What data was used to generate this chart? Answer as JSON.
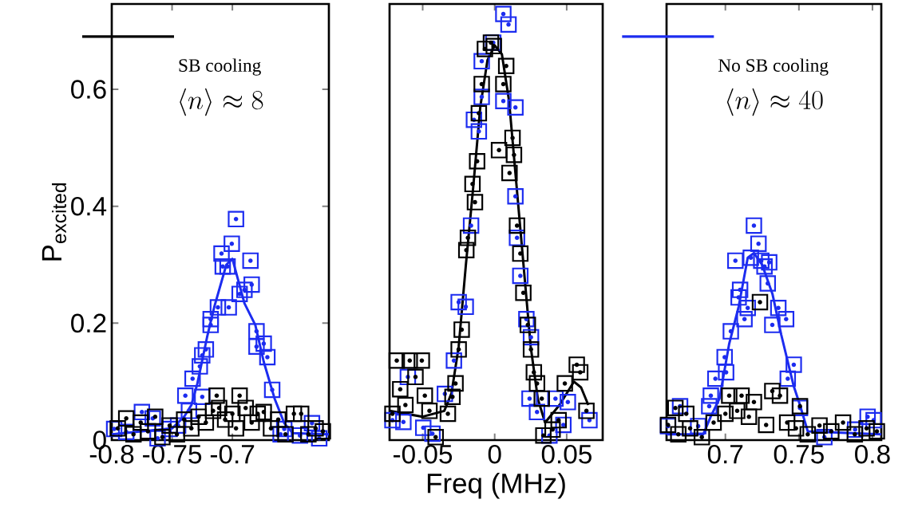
{
  "chart_data": [
    {
      "type": "scatter",
      "ylabel": "P$_{excited}$",
      "xlim": [
        -0.8,
        -0.62
      ],
      "ylim": [
        0,
        0.746
      ],
      "xticks": [
        -0.8,
        -0.75,
        -0.7
      ],
      "yticks": [
        0,
        0.2,
        0.4,
        0.6
      ],
      "marker": "square",
      "legend": "top",
      "annotations": [
        "\\langle n\\rangle \\approx 8"
      ],
      "series": [
        {
          "color": "#1c2cf0",
          "x": [
            -0.697,
            -0.7005,
            -0.709,
            -0.704,
            -0.708,
            -0.685,
            -0.684,
            -0.69,
            -0.694,
            -0.703,
            -0.712,
            -0.718,
            -0.718,
            -0.68,
            -0.68,
            -0.674,
            -0.671,
            -0.722,
            -0.725,
            -0.727,
            -0.733,
            -0.667,
            -0.725,
            -0.739,
            -0.736,
            -0.775,
            -0.766,
            -0.798,
            -0.788,
            -0.762,
            -0.657,
            -0.634,
            -0.628,
            -0.644,
            -0.752,
            -0.745,
            -0.66
          ],
          "values": [
            0.378,
            0.336,
            0.319,
            0.297,
            0.297,
            0.307,
            0.266,
            0.257,
            0.25,
            0.227,
            0.227,
            0.207,
            0.197,
            0.186,
            0.16,
            0.165,
            0.142,
            0.155,
            0.145,
            0.126,
            0.105,
            0.086,
            0.074,
            0.076,
            0.05,
            0.048,
            0.037,
            0.019,
            0.014,
            0.003,
            0.019,
            0.029,
            0.003,
            0.008,
            0.019,
            0.025,
            0.01
          ]
        },
        {
          "name": "SB cooling",
          "color": "#000000",
          "x": [
            -0.795,
            -0.788,
            -0.782,
            -0.776,
            -0.77,
            -0.764,
            -0.758,
            -0.752,
            -0.746,
            -0.74,
            -0.734,
            -0.728,
            -0.722,
            -0.716,
            -0.713,
            -0.711,
            -0.706,
            -0.7,
            -0.697,
            -0.694,
            -0.689,
            -0.684,
            -0.679,
            -0.674,
            -0.668,
            -0.662,
            -0.656,
            -0.649,
            -0.643,
            -0.637,
            -0.631,
            -0.625
          ],
          "values": [
            0.02,
            0.037,
            0.01,
            0.03,
            0.015,
            0.04,
            0.005,
            0.025,
            0.01,
            0.035,
            0.02,
            0.04,
            0.03,
            0.05,
            0.076,
            0.055,
            0.035,
            0.045,
            0.02,
            0.076,
            0.055,
            0.03,
            0.045,
            0.048,
            0.02,
            0.035,
            0.01,
            0.045,
            0.045,
            0.01,
            0.02,
            0.015
          ]
        },
        {
          "type": "line",
          "marker": "none",
          "color": "#1c2cf0",
          "x": [
            -0.8,
            -0.75,
            -0.74,
            -0.734,
            -0.729,
            -0.721,
            -0.715,
            -0.705,
            -0.7,
            -0.69,
            -0.681,
            -0.674,
            -0.665,
            -0.657,
            -0.65,
            -0.62
          ],
          "values": [
            0.01,
            0.02,
            0.04,
            0.06,
            0.097,
            0.176,
            0.228,
            0.3,
            0.31,
            0.234,
            0.197,
            0.134,
            0.071,
            0.029,
            0.012,
            0.01
          ]
        }
      ]
    },
    {
      "type": "scatter",
      "xlabel": "Freq (MHz)",
      "xlim": [
        -0.073,
        0.075
      ],
      "ylim": [
        0,
        0.746
      ],
      "xticks": [
        -0.05,
        0,
        0.05
      ],
      "tick_labels": "x",
      "marker": "square",
      "series": [
        {
          "color": "#1c2cf0",
          "x": [
            0.006,
            0.0096,
            -0.001,
            -0.009,
            -0.009,
            0.006,
            0.0144,
            -0.0144,
            -0.011,
            -0.0164,
            0.0155,
            0.0178,
            0.0144,
            -0.025,
            -0.0201,
            -0.0283,
            0.022,
            0.0252,
            0.0242,
            -0.0346,
            -0.0603,
            -0.071,
            -0.0634,
            -0.0496,
            -0.0432,
            0.0294,
            0.038,
            0.0477,
            0.0658,
            0.0508,
            0.0422
          ],
          "values": [
            0.729,
            0.711,
            0.68,
            0.648,
            0.587,
            0.58,
            0.569,
            0.548,
            0.528,
            0.367,
            0.346,
            0.281,
            0.417,
            0.236,
            0.228,
            0.136,
            0.207,
            0.176,
            0.071,
            0.079,
            0.108,
            0.034,
            0.031,
            0.021,
            0.011,
            0.048,
            0.008,
            0.026,
            0.034,
            0.065,
            0.071
          ]
        },
        {
          "color": "#000000",
          "x": [
            -0.0026,
            -0.0068,
            -0.0006,
            0.008,
            -0.009,
            0.006,
            -0.011,
            0.003,
            0.0124,
            0.0134,
            0.0103,
            -0.0122,
            -0.0154,
            -0.0137,
            0.0155,
            -0.0186,
            -0.0197,
            0.0178,
            0.0199,
            -0.0229,
            -0.025,
            0.023,
            0.0252,
            -0.0272,
            -0.0293,
            0.0272,
            0.0294,
            0.0327,
            -0.068,
            -0.059,
            -0.0506,
            -0.055,
            -0.0656,
            -0.0485,
            -0.071,
            -0.062,
            -0.0453,
            -0.0325,
            -0.041,
            0.057,
            0.0594,
            0.0487,
            0.0637,
            0.0338,
            0.0402,
            0.0444
          ],
          "values": [
            0.68,
            0.669,
            0.674,
            0.64,
            0.609,
            0.609,
            0.559,
            0.496,
            0.517,
            0.488,
            0.457,
            0.477,
            0.438,
            0.407,
            0.367,
            0.346,
            0.325,
            0.319,
            0.252,
            0.189,
            0.155,
            0.197,
            0.155,
            0.097,
            0.074,
            0.116,
            0.097,
            0.071,
            0.136,
            0.136,
            0.136,
            0.108,
            0.087,
            0.076,
            0.045,
            0.06,
            0.05,
            0.045,
            0.005,
            0.129,
            0.116,
            0.097,
            0.05,
            0.008,
            0.018,
            0.034
          ]
        },
        {
          "type": "line",
          "marker": "none",
          "color": "#000000",
          "x": [
            -0.073,
            -0.05,
            -0.035,
            -0.03,
            -0.025,
            -0.02,
            -0.015,
            -0.01,
            -0.005,
            0,
            0.005,
            0.01,
            0.015,
            0.02,
            0.025,
            0.03,
            0.035,
            0.045,
            0.055,
            0.06,
            0.065
          ],
          "values": [
            0.05,
            0.04,
            0.05,
            0.08,
            0.16,
            0.3,
            0.43,
            0.57,
            0.65,
            0.675,
            0.66,
            0.58,
            0.44,
            0.3,
            0.16,
            0.07,
            0.03,
            0.06,
            0.1,
            0.09,
            0.06
          ]
        }
      ]
    },
    {
      "type": "scatter",
      "xlim": [
        0.66,
        0.806
      ],
      "ylim": [
        0,
        0.746
      ],
      "xticks": [
        0.7,
        0.75,
        0.8
      ],
      "tick_labels": "x",
      "marker": "square",
      "legend": "top",
      "annotations": [
        "\\langle n\\rangle \\approx 40"
      ],
      "series": [
        {
          "name": "No SB cooling",
          "color": "#1c2cf0",
          "x": [
            0.7194,
            0.7225,
            0.7068,
            0.7173,
            0.7244,
            0.7298,
            0.7266,
            0.7288,
            0.71,
            0.709,
            0.7152,
            0.713,
            0.736,
            0.7413,
            0.7319,
            0.7037,
            0.6995,
            0.7005,
            0.6932,
            0.7465,
            0.7424,
            0.6901,
            0.689,
            0.7507,
            0.6692,
            0.661,
            0.7967,
            0.8008,
            0.7673,
            0.6815,
            0.7882
          ],
          "values": [
            0.367,
            0.336,
            0.307,
            0.312,
            0.307,
            0.304,
            0.297,
            0.268,
            0.257,
            0.244,
            0.226,
            0.207,
            0.226,
            0.207,
            0.197,
            0.186,
            0.142,
            0.116,
            0.105,
            0.129,
            0.105,
            0.076,
            0.058,
            0.055,
            0.058,
            0.024,
            0.04,
            0.034,
            0.005,
            0.024,
            0.018
          ]
        },
        {
          "color": "#000000",
          "x": [
            0.7235,
            0.7319,
            0.7371,
            0.7026,
            0.711,
            0.7507,
            0.666,
            0.6734,
            0.661,
            0.7277,
            0.7194,
            0.668,
            0.676,
            0.684,
            0.692,
            0.7,
            0.708,
            0.716,
            0.742,
            0.748,
            0.756,
            0.764,
            0.772,
            0.78,
            0.788,
            0.796,
            0.803
          ],
          "values": [
            0.236,
            0.084,
            0.076,
            0.076,
            0.076,
            0.058,
            0.055,
            0.045,
            0.026,
            0.026,
            0.065,
            0.01,
            0.02,
            0.005,
            0.03,
            0.045,
            0.05,
            0.04,
            0.03,
            0.02,
            0.01,
            0.025,
            0.015,
            0.03,
            0.01,
            0.02,
            0.015
          ]
        },
        {
          "type": "line",
          "marker": "none",
          "color": "#1c2cf0",
          "x": [
            0.66,
            0.685,
            0.69,
            0.696,
            0.7026,
            0.709,
            0.7152,
            0.7194,
            0.725,
            0.732,
            0.738,
            0.7465,
            0.7507,
            0.756,
            0.806
          ],
          "values": [
            0.01,
            0.01,
            0.04,
            0.071,
            0.165,
            0.228,
            0.312,
            0.32,
            0.3,
            0.25,
            0.18,
            0.092,
            0.06,
            0.015,
            0.01
          ]
        }
      ]
    }
  ]
}
